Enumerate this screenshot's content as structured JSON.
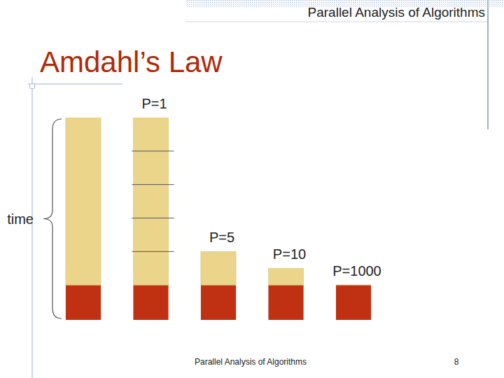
{
  "slide": {
    "header": "Parallel Analysis of Algorithms",
    "footer": "Parallel Analysis of Algorithms",
    "page": 8
  },
  "chart_data": {
    "type": "bar",
    "title": "Amdahl’s Law",
    "ylabel": "time",
    "stacked": true,
    "tick_labels": false,
    "categories": [
      null,
      "P=1",
      "P=5",
      "P=10",
      "P=1000"
    ],
    "ylim": [
      0,
      5.8
    ],
    "yticks": [],
    "series": [
      {
        "color": "#bf3112",
        "values": [
          1,
          1,
          1,
          1,
          1
        ]
      },
      {
        "color": "#ebd58b",
        "values": [
          4.8,
          0.96,
          0.96,
          0.48,
          0.0048
        ]
      },
      {
        "color": "#ebd58b",
        "values": [
          null,
          0.96,
          null,
          null,
          null
        ]
      },
      {
        "color": "#ebd58b",
        "values": [
          null,
          0.96,
          null,
          null,
          null
        ]
      },
      {
        "color": "#ebd58b",
        "values": [
          null,
          0.96,
          null,
          null,
          null
        ]
      },
      {
        "color": "#ebd58b",
        "values": [
          null,
          0.96,
          null,
          null,
          null
        ]
      }
    ]
  }
}
